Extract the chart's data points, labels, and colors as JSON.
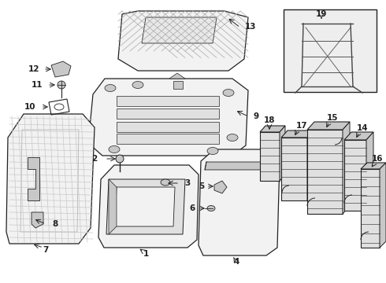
{
  "bg_color": "#ffffff",
  "lc": "#222222",
  "figsize": [
    4.9,
    3.6
  ],
  "dpi": 100,
  "gray1": "#f2f2f2",
  "gray2": "#e0e0e0",
  "gray3": "#c8c8c8",
  "gray4": "#a8a8a8"
}
